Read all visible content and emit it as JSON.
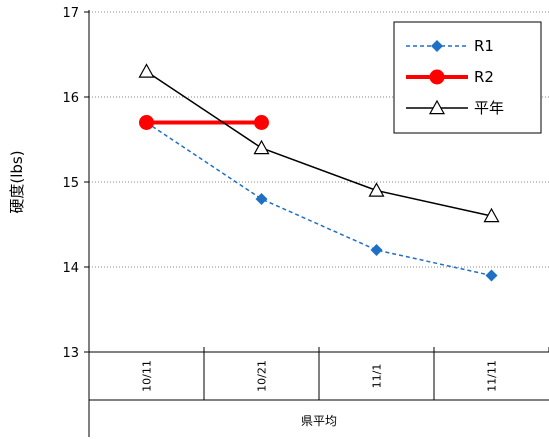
{
  "chart_data": {
    "type": "line",
    "categories": [
      "10/11",
      "10/21",
      "11/1",
      "11/11"
    ],
    "xlabel": "県平均",
    "ylabel": "硬度(lbs)",
    "ylim": [
      13,
      17
    ],
    "yticks": [
      13,
      14,
      15,
      16,
      17
    ],
    "grid": true,
    "legend_position": "top-right",
    "series": [
      {
        "name": "R1",
        "values": [
          15.7,
          14.8,
          14.2,
          13.9
        ],
        "color": "#1f6fc5",
        "marker": "diamond",
        "line": "dashed"
      },
      {
        "name": "R2",
        "values": [
          15.7,
          15.7,
          null,
          null
        ],
        "color": "#ff0000",
        "marker": "circle",
        "line": "solid"
      },
      {
        "name": "平年",
        "values": [
          16.3,
          15.4,
          14.9,
          14.6
        ],
        "color": "#000000",
        "marker": "triangle-open",
        "line": "solid"
      }
    ]
  }
}
